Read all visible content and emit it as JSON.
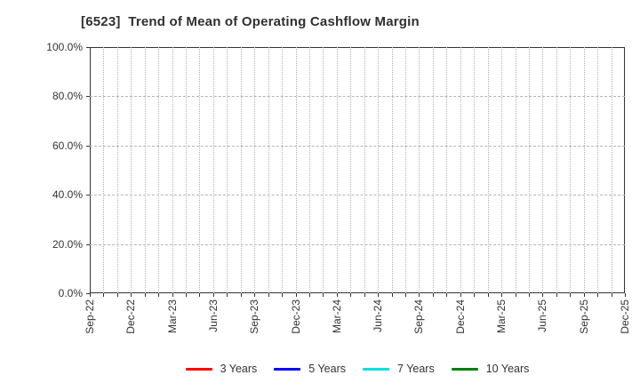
{
  "page": {
    "background_color": "#ffffff"
  },
  "chart_data": {
    "type": "line",
    "title": "[6523]  Trend of Mean of Operating Cashflow Margin",
    "xlabel": "",
    "ylabel": "",
    "ylim": [
      0,
      100
    ],
    "y_tick_labels": [
      "0.0%",
      "20.0%",
      "40.0%",
      "60.0%",
      "80.0%",
      "100.0%"
    ],
    "x_tick_labels": [
      "Sep-22",
      "Dec-22",
      "Mar-23",
      "Jun-23",
      "Sep-23",
      "Dec-23",
      "Mar-24",
      "Jun-24",
      "Sep-24",
      "Dec-24",
      "Mar-25",
      "Jun-25",
      "Sep-25",
      "Dec-25"
    ],
    "x_minor_intervals_per_label": 3,
    "grid": true,
    "legend_position": "bottom",
    "series": [
      {
        "name": "3 Years",
        "color": "#ff0000",
        "values": []
      },
      {
        "name": "5 Years",
        "color": "#0000ff",
        "values": []
      },
      {
        "name": "7 Years",
        "color": "#00e0e0",
        "values": []
      },
      {
        "name": "10 Years",
        "color": "#008000",
        "values": []
      }
    ]
  }
}
